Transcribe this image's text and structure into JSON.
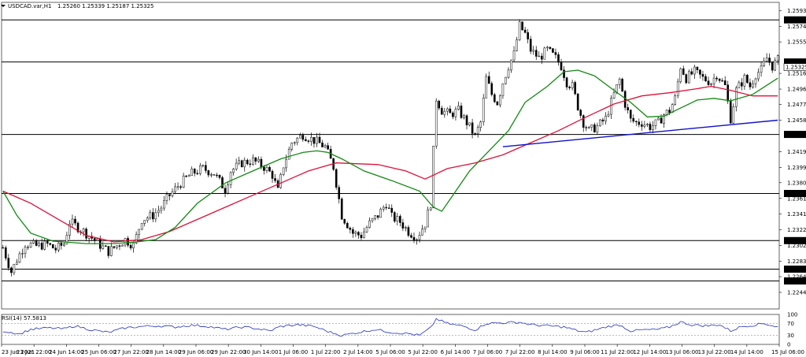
{
  "chart_data": {
    "type": "candlestick",
    "title": "USDCAD.var,H1",
    "ohlc_header": "1.25260 1.25339 1.25187 1.25325",
    "ylim": [
      1.2224,
      1.2604
    ],
    "price_ticks": [
      "1.25935",
      "1.25740",
      "1.25550",
      "1.25160",
      "1.24965",
      "1.24775",
      "1.24580",
      "1.24190",
      "1.23995",
      "1.23805",
      "1.23610",
      "1.23415",
      "1.23220",
      "1.23025",
      "1.22830",
      "1.22640",
      "1.22445"
    ],
    "level_lines": [
      {
        "price": 1.25823,
        "label": "1.25823"
      },
      {
        "price": 1.25301,
        "label": "1.25301"
      },
      {
        "price": 1.24403,
        "label": "1.24403"
      },
      {
        "price": 1.23671,
        "label": "1.23671"
      },
      {
        "price": 1.23087,
        "label": "1.23087"
      },
      {
        "price": 1.22733,
        "label": "1.22733"
      },
      {
        "price": 1.22587,
        "label": "1.22587"
      }
    ],
    "current_price_tag": "1.25325",
    "time_labels": [
      "23 Jun 2021",
      "23 Jun 22:00",
      "24 Jun 14:00",
      "25 Jun 06:00",
      "27 Jun 22:00",
      "28 Jun 14:00",
      "29 Jun 06:00",
      "29 Jun 22:00",
      "30 Jun 14:00",
      "1 Jul 06:00",
      "1 Jul 22:00",
      "2 Jul 14:00",
      "5 Jul 06:00",
      "5 Jul 22:00",
      "6 Jul 14:00",
      "7 Jul 06:00",
      "7 Jul 22:00",
      "8 Jul 14:00",
      "9 Jul 06:00",
      "11 Jul 22:00",
      "12 Jul 14:00",
      "13 Jul 06:00",
      "13 Jul 22:00",
      "14 Jul 14:00",
      "15 Jul 06:00"
    ],
    "close_path": [
      [
        0,
        1.23
      ],
      [
        3,
        1.227
      ],
      [
        5,
        1.2285
      ],
      [
        8,
        1.2305
      ],
      [
        12,
        1.2302
      ],
      [
        16,
        1.2304
      ],
      [
        19,
        1.2298
      ],
      [
        22,
        1.2305
      ],
      [
        24,
        1.2332
      ],
      [
        28,
        1.2323
      ],
      [
        32,
        1.2312
      ],
      [
        35,
        1.2303
      ],
      [
        38,
        1.2295
      ],
      [
        42,
        1.2305
      ],
      [
        44,
        1.231
      ],
      [
        47,
        1.2303
      ],
      [
        50,
        1.2335
      ],
      [
        54,
        1.234
      ],
      [
        57,
        1.235
      ],
      [
        60,
        1.2365
      ],
      [
        64,
        1.238
      ],
      [
        68,
        1.2392
      ],
      [
        72,
        1.2398
      ],
      [
        76,
        1.2392
      ],
      [
        80,
        1.2372
      ],
      [
        82,
        1.2395
      ],
      [
        86,
        1.2405
      ],
      [
        90,
        1.2408
      ],
      [
        94,
        1.24
      ],
      [
        97,
        1.239
      ],
      [
        99,
        1.237
      ],
      [
        101,
        1.2402
      ],
      [
        104,
        1.243
      ],
      [
        108,
        1.244
      ],
      [
        112,
        1.2433
      ],
      [
        116,
        1.2425
      ],
      [
        119,
        1.24
      ],
      [
        122,
        1.234
      ],
      [
        126,
        1.2318
      ],
      [
        129,
        1.2315
      ],
      [
        132,
        1.233
      ],
      [
        135,
        1.234
      ],
      [
        138,
        1.2355
      ],
      [
        140,
        1.2338
      ],
      [
        143,
        1.2332
      ],
      [
        146,
        1.232
      ],
      [
        149,
        1.2313
      ],
      [
        152,
        1.233
      ],
      [
        154,
        1.2355
      ],
      [
        156,
        1.2485
      ],
      [
        158,
        1.247
      ],
      [
        161,
        1.2465
      ],
      [
        164,
        1.247
      ],
      [
        167,
        1.2455
      ],
      [
        170,
        1.2438
      ],
      [
        172,
        1.2455
      ],
      [
        174,
        1.251
      ],
      [
        176,
        1.249
      ],
      [
        178,
        1.248
      ],
      [
        180,
        1.2505
      ],
      [
        182,
        1.2525
      ],
      [
        184,
        1.254
      ],
      [
        186,
        1.2575
      ],
      [
        188,
        1.2565
      ],
      [
        190,
        1.2545
      ],
      [
        193,
        1.2535
      ],
      [
        196,
        1.2545
      ],
      [
        199,
        1.2535
      ],
      [
        201,
        1.2525
      ],
      [
        203,
        1.2505
      ],
      [
        205,
        1.25
      ],
      [
        207,
        1.2475
      ],
      [
        209,
        1.2455
      ],
      [
        211,
        1.2445
      ],
      [
        214,
        1.245
      ],
      [
        217,
        1.246
      ],
      [
        220,
        1.249
      ],
      [
        222,
        1.2508
      ],
      [
        224,
        1.2478
      ],
      [
        226,
        1.2458
      ],
      [
        228,
        1.2455
      ],
      [
        230,
        1.2455
      ],
      [
        233,
        1.245
      ],
      [
        236,
        1.2455
      ],
      [
        238,
        1.2465
      ],
      [
        240,
        1.247
      ],
      [
        242,
        1.2485
      ],
      [
        244,
        1.2525
      ],
      [
        246,
        1.251
      ],
      [
        249,
        1.2518
      ],
      [
        252,
        1.251
      ],
      [
        255,
        1.2505
      ],
      [
        257,
        1.2515
      ],
      [
        260,
        1.25
      ],
      [
        262,
        1.246
      ],
      [
        264,
        1.2495
      ],
      [
        267,
        1.251
      ],
      [
        269,
        1.25
      ],
      [
        271,
        1.2515
      ],
      [
        273,
        1.252
      ],
      [
        275,
        1.2535
      ],
      [
        277,
        1.2525
      ],
      [
        279,
        1.25325
      ]
    ],
    "sma_red": [
      [
        0,
        1.237
      ],
      [
        10,
        1.2355
      ],
      [
        20,
        1.2335
      ],
      [
        30,
        1.2315
      ],
      [
        40,
        1.2307
      ],
      [
        50,
        1.231
      ],
      [
        60,
        1.232
      ],
      [
        70,
        1.2335
      ],
      [
        80,
        1.235
      ],
      [
        90,
        1.2365
      ],
      [
        100,
        1.238
      ],
      [
        110,
        1.2395
      ],
      [
        115,
        1.24
      ],
      [
        120,
        1.2405
      ],
      [
        135,
        1.2403
      ],
      [
        145,
        1.2395
      ],
      [
        152,
        1.2385
      ],
      [
        160,
        1.2398
      ],
      [
        170,
        1.2405
      ],
      [
        180,
        1.2415
      ],
      [
        190,
        1.243
      ],
      [
        200,
        1.2445
      ],
      [
        210,
        1.2462
      ],
      [
        220,
        1.2478
      ],
      [
        230,
        1.2488
      ],
      [
        240,
        1.2492
      ],
      [
        250,
        1.2497
      ],
      [
        255,
        1.25
      ],
      [
        262,
        1.2495
      ],
      [
        270,
        1.2488
      ],
      [
        279,
        1.2488
      ]
    ],
    "sma_green": [
      [
        0,
        1.237
      ],
      [
        5,
        1.234
      ],
      [
        10,
        1.2318
      ],
      [
        18,
        1.2308
      ],
      [
        30,
        1.2305
      ],
      [
        40,
        1.2305
      ],
      [
        48,
        1.2307
      ],
      [
        55,
        1.231
      ],
      [
        62,
        1.2325
      ],
      [
        70,
        1.2355
      ],
      [
        80,
        1.238
      ],
      [
        90,
        1.2395
      ],
      [
        100,
        1.241
      ],
      [
        108,
        1.2418
      ],
      [
        113,
        1.242
      ],
      [
        117,
        1.2418
      ],
      [
        122,
        1.241
      ],
      [
        130,
        1.2395
      ],
      [
        140,
        1.2383
      ],
      [
        150,
        1.237
      ],
      [
        155,
        1.235
      ],
      [
        158,
        1.2345
      ],
      [
        162,
        1.2365
      ],
      [
        168,
        1.2395
      ],
      [
        175,
        1.242
      ],
      [
        182,
        1.2445
      ],
      [
        188,
        1.248
      ],
      [
        196,
        1.25
      ],
      [
        202,
        1.2518
      ],
      [
        207,
        1.252
      ],
      [
        213,
        1.2513
      ],
      [
        220,
        1.2495
      ],
      [
        226,
        1.248
      ],
      [
        232,
        1.2462
      ],
      [
        238,
        1.2463
      ],
      [
        244,
        1.2473
      ],
      [
        250,
        1.2483
      ],
      [
        256,
        1.2485
      ],
      [
        262,
        1.2482
      ],
      [
        270,
        1.249
      ],
      [
        279,
        1.251
      ]
    ],
    "trendline": [
      [
        180,
        1.2425
      ],
      [
        279,
        1.2458
      ]
    ],
    "rsi": {
      "label": "RSI(14) 57.5813",
      "levels": [
        "100",
        "70",
        "30",
        "0"
      ],
      "values": [
        [
          0,
          45
        ],
        [
          6,
          35
        ],
        [
          10,
          50
        ],
        [
          16,
          55
        ],
        [
          22,
          52
        ],
        [
          26,
          62
        ],
        [
          32,
          48
        ],
        [
          38,
          40
        ],
        [
          44,
          55
        ],
        [
          50,
          60
        ],
        [
          56,
          62
        ],
        [
          62,
          58
        ],
        [
          68,
          64
        ],
        [
          74,
          60
        ],
        [
          80,
          50
        ],
        [
          86,
          58
        ],
        [
          90,
          55
        ],
        [
          96,
          45
        ],
        [
          100,
          60
        ],
        [
          106,
          66
        ],
        [
          112,
          60
        ],
        [
          118,
          40
        ],
        [
          122,
          30
        ],
        [
          128,
          40
        ],
        [
          134,
          50
        ],
        [
          140,
          40
        ],
        [
          146,
          36
        ],
        [
          150,
          30
        ],
        [
          154,
          55
        ],
        [
          156,
          85
        ],
        [
          160,
          70
        ],
        [
          166,
          60
        ],
        [
          170,
          48
        ],
        [
          174,
          70
        ],
        [
          180,
          72
        ],
        [
          186,
          74
        ],
        [
          190,
          66
        ],
        [
          196,
          62
        ],
        [
          202,
          58
        ],
        [
          206,
          48
        ],
        [
          210,
          40
        ],
        [
          214,
          50
        ],
        [
          218,
          60
        ],
        [
          222,
          65
        ],
        [
          226,
          45
        ],
        [
          230,
          48
        ],
        [
          236,
          50
        ],
        [
          240,
          58
        ],
        [
          244,
          75
        ],
        [
          248,
          65
        ],
        [
          254,
          62
        ],
        [
          258,
          66
        ],
        [
          262,
          45
        ],
        [
          266,
          60
        ],
        [
          270,
          64
        ],
        [
          274,
          70
        ],
        [
          279,
          58
        ]
      ]
    }
  }
}
